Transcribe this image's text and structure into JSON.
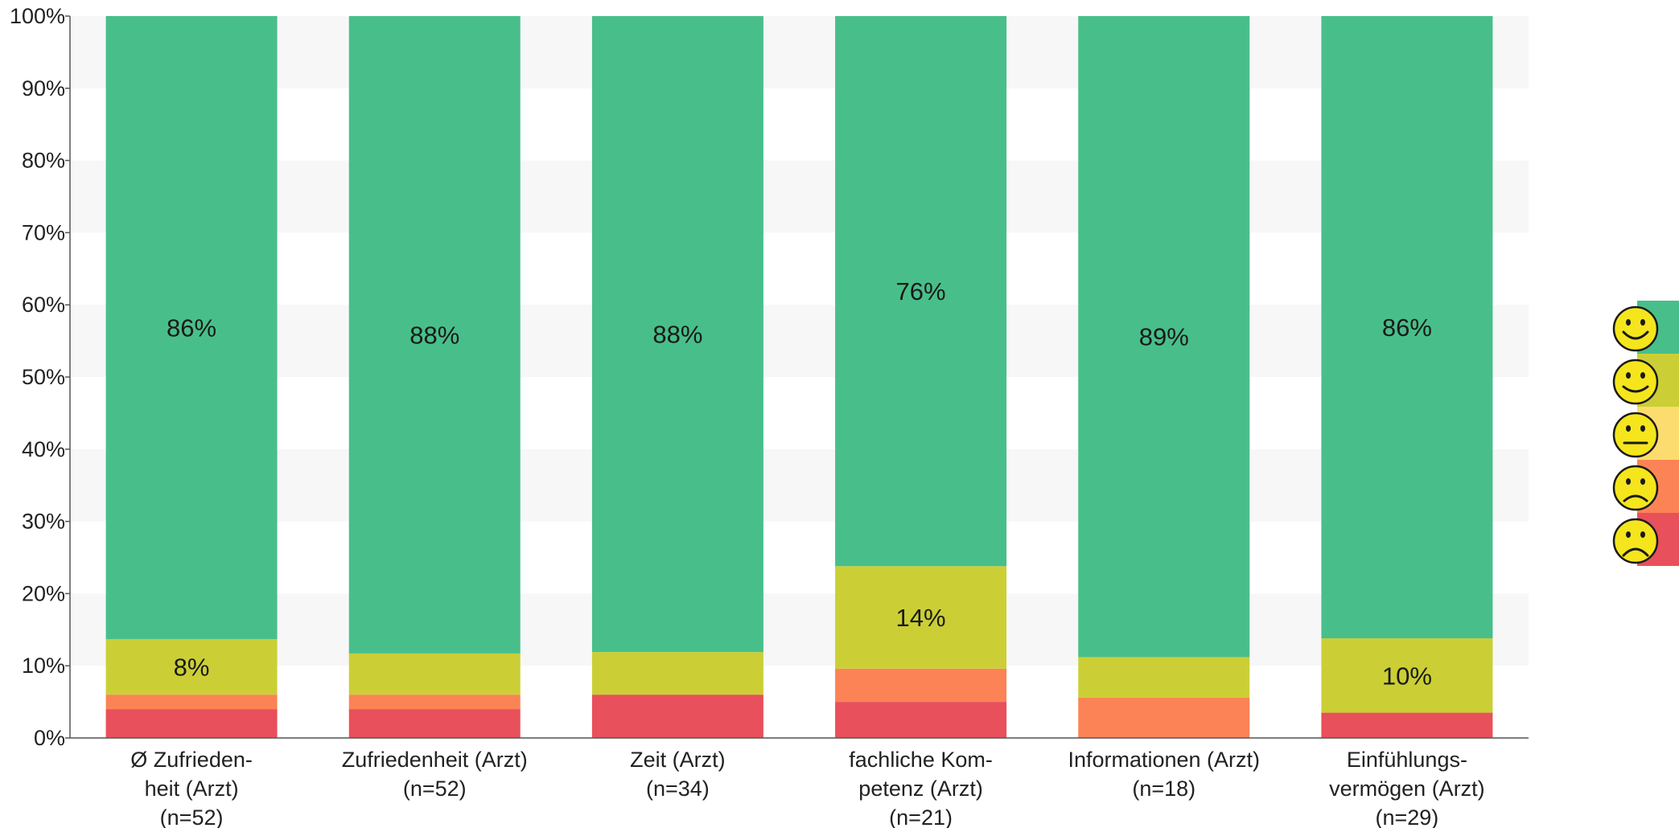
{
  "chart_data": {
    "type": "bar",
    "stacked": true,
    "percent_axis": true,
    "ylim": [
      0,
      100
    ],
    "yticks": [
      "0%",
      "10%",
      "20%",
      "30%",
      "40%",
      "50%",
      "60%",
      "70%",
      "80%",
      "90%",
      "100%"
    ],
    "grid": "alternating horizontal bands",
    "categories": [
      [
        "Ø Zufrieden-",
        "heit (Arzt)",
        "(n=52)"
      ],
      [
        "Zufriedenheit (Arzt)",
        "(n=52)"
      ],
      [
        "Zeit (Arzt)",
        "(n=34)"
      ],
      [
        "fachliche Kom-",
        "petenz (Arzt)",
        "(n=21)"
      ],
      [
        "Informationen (Arzt)",
        "(n=18)"
      ],
      [
        "Einfühlungs-",
        "vermögen (Arzt)",
        "(n=29)"
      ]
    ],
    "series": [
      {
        "color": "#e8505b",
        "icon": "very-sad-face-icon",
        "values": [
          4,
          4,
          6,
          5,
          0,
          3.5
        ]
      },
      {
        "color": "#fc8355",
        "icon": "sad-face-icon",
        "values": [
          2,
          2,
          0,
          4.6,
          5.6,
          0
        ]
      },
      {
        "color": "#fcdc6e",
        "icon": "neutral-face-icon",
        "values": [
          0,
          0,
          0,
          0,
          0,
          0
        ]
      },
      {
        "color": "#cbcf35",
        "icon": "happy-face-icon",
        "values": [
          7.7,
          5.7,
          5.9,
          14.2,
          5.6,
          10.3
        ]
      },
      {
        "color": "#48bf8a",
        "icon": "very-happy-face-icon",
        "values": [
          86.3,
          88.3,
          88.1,
          76.2,
          88.8,
          86.2
        ]
      }
    ],
    "data_labels": [
      {
        "category": 0,
        "series": 4,
        "text": "86%"
      },
      {
        "category": 0,
        "series": 3,
        "text": "8%"
      },
      {
        "category": 1,
        "series": 4,
        "text": "88%"
      },
      {
        "category": 2,
        "series": 4,
        "text": "88%"
      },
      {
        "category": 3,
        "series": 4,
        "text": "76%"
      },
      {
        "category": 3,
        "series": 3,
        "text": "14%"
      },
      {
        "category": 4,
        "series": 4,
        "text": "89%"
      },
      {
        "category": 5,
        "series": 4,
        "text": "86%"
      },
      {
        "category": 5,
        "series": 3,
        "text": "10%"
      }
    ],
    "legend": {
      "placement": "right",
      "items": [
        {
          "icon": "very-happy-face-icon",
          "color": "#48bf8a"
        },
        {
          "icon": "happy-face-icon",
          "color": "#cbcf35"
        },
        {
          "icon": "neutral-face-icon",
          "color": "#fcdc6e"
        },
        {
          "icon": "sad-face-icon",
          "color": "#fc8355"
        },
        {
          "icon": "very-sad-face-icon",
          "color": "#e8505b"
        }
      ]
    }
  }
}
